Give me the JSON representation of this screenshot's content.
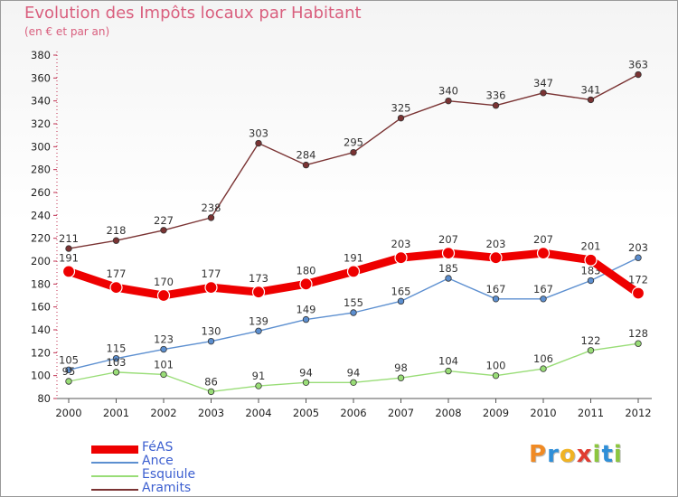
{
  "title": "Evolution des Impôts locaux par Habitant",
  "subtitle": "(en € et par an)",
  "logo": {
    "text": "Proxiti",
    "letters": [
      {
        "ch": "P",
        "color": "#f08a24"
      },
      {
        "ch": "r",
        "color": "#2f8fd8"
      },
      {
        "ch": "o",
        "color": "#f0b323"
      },
      {
        "ch": "x",
        "color": "#e03c31"
      },
      {
        "ch": "i",
        "color": "#8cc63f"
      },
      {
        "ch": "t",
        "color": "#2f8fd8"
      },
      {
        "ch": "i",
        "color": "#8cc63f"
      }
    ]
  },
  "chart_data": {
    "type": "line",
    "title": "Evolution des Impôts locaux par Habitant",
    "subtitle": "(en € et par an)",
    "x": [
      "2000",
      "2001",
      "2002",
      "2003",
      "2004",
      "2005",
      "2006",
      "2007",
      "2008",
      "2009",
      "2010",
      "2011",
      "2012"
    ],
    "ylim": [
      80,
      380
    ],
    "yticks": [
      80,
      100,
      120,
      140,
      160,
      180,
      200,
      220,
      240,
      260,
      280,
      300,
      320,
      340,
      360,
      380
    ],
    "grid": false,
    "legend_position": "bottom-left",
    "series": [
      {
        "name": "FéAS",
        "color": "#ee0000",
        "emphasis": true,
        "values": [
          191,
          177,
          170,
          177,
          173,
          180,
          191,
          203,
          207,
          203,
          207,
          201,
          172
        ]
      },
      {
        "name": "Ance",
        "color": "#5c8fd0",
        "emphasis": false,
        "values": [
          105,
          115,
          123,
          130,
          139,
          149,
          155,
          165,
          185,
          167,
          167,
          183,
          203
        ]
      },
      {
        "name": "Esquiule",
        "color": "#99dd77",
        "emphasis": false,
        "values": [
          95,
          103,
          101,
          86,
          91,
          94,
          94,
          98,
          104,
          100,
          106,
          122,
          128
        ]
      },
      {
        "name": "Aramits",
        "color": "#7a3333",
        "emphasis": false,
        "values": [
          211,
          218,
          227,
          238,
          303,
          284,
          295,
          325,
          340,
          336,
          347,
          341,
          363
        ]
      }
    ]
  }
}
